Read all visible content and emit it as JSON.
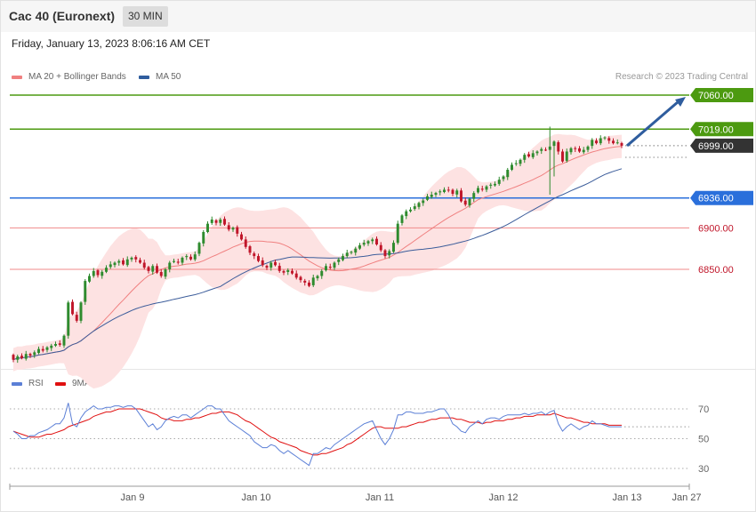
{
  "header": {
    "title": "Cac 40 (Euronext)",
    "timeframe": "30 MIN",
    "datetime": "Friday, January 13, 2023 8:06:16 AM CET",
    "credit": "Research © 2023 Trading Central"
  },
  "legend": {
    "main": [
      {
        "label": "MA 20 + Bollinger Bands",
        "color": "#f08080"
      },
      {
        "label": "MA 50",
        "color": "#2f5d9e"
      }
    ],
    "rsi": [
      {
        "label": "RSI",
        "color": "#5b7fd6"
      },
      {
        "label": "9MA",
        "color": "#e01010"
      }
    ]
  },
  "colors": {
    "up": "#2e8b2e",
    "down": "#c0162a",
    "band_fill": "#fde2e2",
    "ma20": "#f08080",
    "ma50": "#3b5c9a",
    "resistance": "#4c9a10",
    "pivot": "#2a6fdb",
    "support": "#f08a8a",
    "current": "#333333",
    "arrow": "#2f5d9e"
  },
  "chart_data": [
    {
      "type": "candlestick",
      "title": "Cac 40 (Euronext)",
      "ylim": [
        6730,
        7075
      ],
      "x_labels": [
        "Jan 9",
        "Jan 10",
        "Jan 11",
        "Jan 12",
        "Jan 13",
        "Jan 27"
      ],
      "levels": [
        {
          "value": 7060,
          "label": "7060.00",
          "kind": "resistance"
        },
        {
          "value": 7019,
          "label": "7019.00",
          "kind": "resistance"
        },
        {
          "value": 6999,
          "label": "6999.00",
          "kind": "current"
        },
        {
          "value": 6936,
          "label": "6936.00",
          "kind": "pivot"
        },
        {
          "value": 6900,
          "label": "6900.00",
          "kind": "support"
        },
        {
          "value": 6850,
          "label": "6850.00",
          "kind": "support"
        }
      ],
      "close": [
        6741,
        6745,
        6743,
        6748,
        6746,
        6750,
        6754,
        6752,
        6756,
        6758,
        6760,
        6759,
        6770,
        6810,
        6796,
        6788,
        6810,
        6836,
        6842,
        6848,
        6843,
        6847,
        6852,
        6856,
        6858,
        6860,
        6856,
        6862,
        6864,
        6862,
        6858,
        6852,
        6848,
        6854,
        6846,
        6842,
        6850,
        6858,
        6860,
        6858,
        6864,
        6866,
        6862,
        6868,
        6882,
        6895,
        6905,
        6910,
        6906,
        6910,
        6904,
        6898,
        6900,
        6893,
        6886,
        6877,
        6870,
        6866,
        6860,
        6855,
        6852,
        6858,
        6855,
        6848,
        6846,
        6849,
        6845,
        6840,
        6837,
        6834,
        6830,
        6840,
        6842,
        6848,
        6854,
        6852,
        6858,
        6862,
        6866,
        6870,
        6871,
        6875,
        6879,
        6882,
        6884,
        6886,
        6880,
        6873,
        6866,
        6872,
        6882,
        6905,
        6915,
        6920,
        6922,
        6926,
        6930,
        6933,
        6938,
        6940,
        6942,
        6944,
        6946,
        6945,
        6941,
        6945,
        6932,
        6928,
        6935,
        6942,
        6948,
        6946,
        6950,
        6952,
        6953,
        6958,
        6962,
        6970,
        6976,
        6978,
        6982,
        6988,
        6986,
        6990,
        6992,
        6995,
        6994,
        6998,
        7004,
        6992,
        6980,
        6992,
        6996,
        6995,
        6992,
        6994,
        6998,
        7006,
        7002,
        7008,
        7009,
        7005,
        7002,
        7003,
        6999
      ],
      "rsi": {
        "ylim": [
          25,
          80
        ],
        "ticks": [
          70,
          50,
          30
        ],
        "rsi": [
          55,
          53,
          50,
          50,
          52,
          52,
          54,
          55,
          56,
          58,
          60,
          60,
          64,
          74,
          60,
          58,
          64,
          68,
          70,
          72,
          70,
          70,
          71,
          71,
          72,
          72,
          71,
          72,
          72,
          70,
          66,
          62,
          58,
          60,
          56,
          58,
          62,
          64,
          65,
          64,
          66,
          66,
          64,
          66,
          68,
          70,
          72,
          72,
          70,
          70,
          66,
          62,
          60,
          58,
          56,
          54,
          52,
          48,
          46,
          44,
          44,
          46,
          45,
          42,
          40,
          42,
          40,
          38,
          36,
          34,
          32,
          40,
          40,
          42,
          44,
          43,
          46,
          48,
          50,
          52,
          54,
          56,
          58,
          60,
          61,
          62,
          56,
          50,
          46,
          50,
          56,
          66,
          66,
          68,
          68,
          67,
          67,
          67,
          68,
          68,
          69,
          70,
          70,
          66,
          60,
          58,
          55,
          54,
          58,
          60,
          62,
          60,
          63,
          64,
          64,
          63,
          65,
          66,
          66,
          66,
          66,
          67,
          66,
          67,
          67,
          68,
          66,
          68,
          69,
          60,
          55,
          58,
          60,
          58,
          56,
          58,
          59,
          62,
          60,
          60,
          59,
          58,
          58,
          58,
          58
        ],
        "ma9": [
          55,
          54,
          53,
          52,
          51,
          51,
          51,
          52,
          53,
          53,
          54,
          55,
          56,
          58,
          59,
          60,
          61,
          62,
          63,
          65,
          66,
          67,
          68,
          68,
          69,
          70,
          70,
          70,
          70,
          70,
          70,
          69,
          68,
          67,
          66,
          64,
          63,
          63,
          62,
          62,
          62,
          63,
          63,
          64,
          64,
          65,
          66,
          67,
          67,
          68,
          68,
          68,
          67,
          66,
          64,
          62,
          61,
          59,
          57,
          55,
          53,
          51,
          50,
          48,
          47,
          46,
          45,
          44,
          42,
          41,
          40,
          39,
          39,
          40,
          40,
          41,
          42,
          43,
          44,
          46,
          47,
          49,
          51,
          53,
          55,
          57,
          58,
          58,
          57,
          57,
          57,
          57,
          58,
          58,
          59,
          60,
          61,
          61,
          62,
          63,
          63,
          64,
          64,
          64,
          64,
          63,
          63,
          62,
          61,
          61,
          61,
          60,
          61,
          61,
          62,
          62,
          62,
          63,
          63,
          64,
          64,
          65,
          65,
          65,
          66,
          66,
          66,
          66,
          67,
          66,
          65,
          64,
          64,
          63,
          62,
          61,
          61,
          60,
          60,
          60,
          60,
          59,
          59,
          59,
          59
        ]
      }
    }
  ]
}
